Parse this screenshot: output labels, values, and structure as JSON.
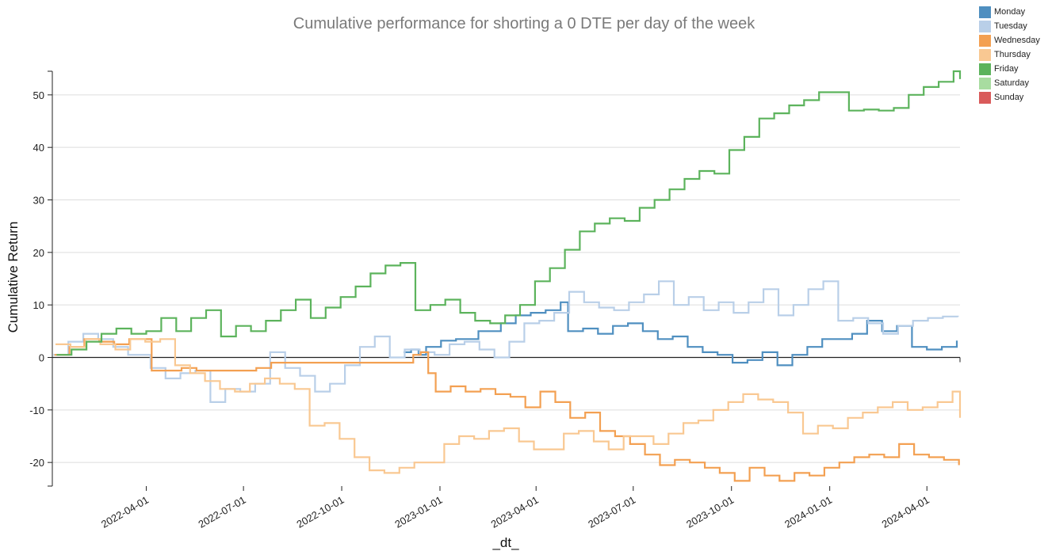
{
  "chart_data": {
    "type": "line",
    "title": "Cumulative performance for shorting a 0 DTE per day of the week",
    "xlabel": "_dt_",
    "ylabel": "Cumulative Return",
    "xlim": [
      "2022-01-03",
      "2024-05-02"
    ],
    "ylim": [
      -24.5,
      54.5
    ],
    "grid": true,
    "legend_position": "top-right",
    "x_tick_labels": [
      "2022-04-01",
      "2022-07-01",
      "2022-10-01",
      "2023-01-01",
      "2023-04-01",
      "2023-07-01",
      "2023-10-01",
      "2024-01-01",
      "2024-04-01"
    ],
    "y_tick_labels": [
      "-20",
      "-10",
      "0",
      "10",
      "20",
      "30",
      "40",
      "50"
    ],
    "y_ticks": [
      -20,
      -10,
      0,
      10,
      20,
      30,
      40,
      50
    ],
    "series": [
      {
        "name": "Monday",
        "color": "#4f8fc0",
        "x": [
          "2022-11-28",
          "2022-12-05",
          "2022-12-12",
          "2022-12-19",
          "2023-01-02",
          "2023-01-16",
          "2023-02-06",
          "2023-02-27",
          "2023-03-13",
          "2023-03-27",
          "2023-04-10",
          "2023-04-24",
          "2023-05-01",
          "2023-05-15",
          "2023-05-29",
          "2023-06-12",
          "2023-06-26",
          "2023-07-10",
          "2023-07-24",
          "2023-08-07",
          "2023-08-21",
          "2023-09-04",
          "2023-09-18",
          "2023-10-02",
          "2023-10-16",
          "2023-10-30",
          "2023-11-13",
          "2023-11-27",
          "2023-12-11",
          "2023-12-25",
          "2024-01-08",
          "2024-01-22",
          "2024-02-05",
          "2024-02-19",
          "2024-03-04",
          "2024-03-18",
          "2024-04-01",
          "2024-04-15",
          "2024-04-29"
        ],
        "y": [
          1.0,
          1.5,
          0.5,
          2.0,
          3.2,
          3.5,
          5.0,
          6.5,
          8.0,
          8.5,
          9.0,
          10.5,
          5.0,
          5.5,
          4.5,
          6.0,
          6.5,
          5.0,
          3.5,
          4.0,
          2.0,
          1.0,
          0.5,
          -1.0,
          -0.5,
          1.0,
          -1.5,
          0.5,
          2.0,
          3.5,
          3.5,
          4.5,
          7.0,
          5.0,
          6.0,
          2.0,
          1.5,
          2.0,
          3.2
        ]
      },
      {
        "name": "Tuesday",
        "color": "#b9cfe8",
        "x": [
          "2022-01-04",
          "2022-01-18",
          "2022-02-01",
          "2022-02-15",
          "2022-03-01",
          "2022-03-15",
          "2022-04-05",
          "2022-04-19",
          "2022-05-03",
          "2022-05-17",
          "2022-05-31",
          "2022-06-14",
          "2022-06-28",
          "2022-07-12",
          "2022-07-26",
          "2022-08-09",
          "2022-08-23",
          "2022-09-06",
          "2022-09-20",
          "2022-10-04",
          "2022-10-18",
          "2022-11-01",
          "2022-11-15",
          "2022-11-29",
          "2022-12-13",
          "2022-12-27",
          "2023-01-10",
          "2023-01-24",
          "2023-02-07",
          "2023-02-21",
          "2023-03-07",
          "2023-03-21",
          "2023-04-04",
          "2023-04-18",
          "2023-05-02",
          "2023-05-16",
          "2023-05-30",
          "2023-06-13",
          "2023-06-27",
          "2023-07-11",
          "2023-07-25",
          "2023-08-08",
          "2023-08-22",
          "2023-09-05",
          "2023-09-19",
          "2023-10-03",
          "2023-10-17",
          "2023-10-31",
          "2023-11-14",
          "2023-11-28",
          "2023-12-12",
          "2023-12-26",
          "2024-01-09",
          "2024-01-23",
          "2024-02-06",
          "2024-02-20",
          "2024-03-05",
          "2024-03-19",
          "2024-04-02",
          "2024-04-16",
          "2024-04-30"
        ],
        "y": [
          0.5,
          3.0,
          4.5,
          3.5,
          2.0,
          0.5,
          -2.0,
          -4.0,
          -3.0,
          -2.5,
          -8.5,
          -6.0,
          -6.5,
          -5.0,
          1.0,
          -2.0,
          -3.5,
          -6.5,
          -5.0,
          -1.5,
          2.0,
          4.0,
          0.0,
          1.5,
          1.0,
          0.5,
          2.5,
          3.0,
          1.5,
          0.0,
          3.0,
          6.5,
          7.0,
          8.5,
          12.5,
          10.5,
          9.5,
          9.0,
          10.5,
          12.0,
          14.5,
          10.0,
          11.5,
          9.0,
          10.5,
          8.5,
          10.5,
          13.0,
          8.0,
          10.0,
          13.0,
          14.5,
          7.0,
          7.5,
          6.5,
          4.5,
          6.0,
          7.0,
          7.5,
          7.8,
          7.7
        ]
      },
      {
        "name": "Wednesday",
        "color": "#f3a052",
        "x": [
          "2022-01-05",
          "2022-01-19",
          "2022-02-02",
          "2022-02-16",
          "2022-03-02",
          "2022-03-16",
          "2022-04-06",
          "2022-04-20",
          "2022-05-04",
          "2022-05-18",
          "2022-06-01",
          "2022-06-15",
          "2022-06-29",
          "2022-07-13",
          "2022-07-27",
          "2022-08-10",
          "2022-08-24",
          "2022-09-07",
          "2022-09-21",
          "2022-10-05",
          "2022-10-19",
          "2022-11-02",
          "2022-11-16",
          "2022-11-30",
          "2022-12-07",
          "2022-12-14",
          "2022-12-21",
          "2022-12-28",
          "2023-01-11",
          "2023-01-25",
          "2023-02-08",
          "2023-02-22",
          "2023-03-08",
          "2023-03-22",
          "2023-04-05",
          "2023-04-19",
          "2023-05-03",
          "2023-05-17",
          "2023-05-31",
          "2023-06-14",
          "2023-06-28",
          "2023-07-12",
          "2023-07-26",
          "2023-08-09",
          "2023-08-23",
          "2023-09-06",
          "2023-09-20",
          "2023-10-04",
          "2023-10-18",
          "2023-11-01",
          "2023-11-15",
          "2023-11-29",
          "2023-12-13",
          "2023-12-27",
          "2024-01-10",
          "2024-01-24",
          "2024-02-07",
          "2024-02-21",
          "2024-03-06",
          "2024-03-20",
          "2024-04-03",
          "2024-04-17",
          "2024-05-01"
        ],
        "y": [
          0.5,
          2.0,
          3.5,
          3.0,
          2.5,
          3.5,
          -2.5,
          -2.5,
          -2.0,
          -2.5,
          -2.5,
          -2.5,
          -2.5,
          -2.0,
          -1.0,
          -1.0,
          -1.0,
          -1.0,
          -1.0,
          -1.0,
          -1.0,
          -1.0,
          -1.0,
          -1.0,
          0.5,
          1.0,
          -3.0,
          -6.5,
          -5.5,
          -6.5,
          -6.0,
          -7.0,
          -7.5,
          -9.5,
          -6.5,
          -8.5,
          -11.5,
          -10.5,
          -14.0,
          -15.0,
          -16.5,
          -18.5,
          -20.5,
          -19.5,
          -20.0,
          -21.0,
          -22.0,
          -23.5,
          -21.0,
          -22.5,
          -23.5,
          -22.0,
          -22.5,
          -21.0,
          -20.0,
          -19.0,
          -18.5,
          -19.0,
          -16.5,
          -18.5,
          -19.0,
          -19.5,
          -20.5
        ]
      },
      {
        "name": "Thursday",
        "color": "#f9c892",
        "x": [
          "2022-01-06",
          "2022-01-20",
          "2022-02-03",
          "2022-02-17",
          "2022-03-03",
          "2022-03-17",
          "2022-03-31",
          "2022-04-14",
          "2022-04-28",
          "2022-05-12",
          "2022-05-26",
          "2022-06-09",
          "2022-06-23",
          "2022-07-07",
          "2022-07-21",
          "2022-08-04",
          "2022-08-18",
          "2022-09-01",
          "2022-09-15",
          "2022-09-29",
          "2022-10-13",
          "2022-10-27",
          "2022-11-10",
          "2022-11-24",
          "2022-12-08",
          "2022-12-22",
          "2023-01-05",
          "2023-01-19",
          "2023-02-02",
          "2023-02-16",
          "2023-03-02",
          "2023-03-16",
          "2023-03-30",
          "2023-04-13",
          "2023-04-27",
          "2023-05-11",
          "2023-05-25",
          "2023-06-08",
          "2023-06-22",
          "2023-07-06",
          "2023-07-20",
          "2023-08-03",
          "2023-08-17",
          "2023-08-31",
          "2023-09-14",
          "2023-09-28",
          "2023-10-12",
          "2023-10-26",
          "2023-11-09",
          "2023-11-23",
          "2023-12-07",
          "2023-12-21",
          "2024-01-04",
          "2024-01-18",
          "2024-02-01",
          "2024-02-15",
          "2024-02-29",
          "2024-03-14",
          "2024-03-28",
          "2024-04-11",
          "2024-04-25",
          "2024-05-02"
        ],
        "y": [
          2.5,
          2.0,
          3.5,
          2.5,
          1.5,
          3.5,
          3.0,
          3.5,
          -1.5,
          -3.0,
          -4.5,
          -6.0,
          -6.5,
          -5.0,
          -4.0,
          -5.0,
          -6.0,
          -13.0,
          -12.5,
          -15.5,
          -19.0,
          -21.5,
          -22.0,
          -21.0,
          -20.0,
          -20.0,
          -16.5,
          -15.0,
          -15.5,
          -14.0,
          -13.5,
          -16.0,
          -17.5,
          -17.5,
          -14.5,
          -14.0,
          -16.0,
          -17.5,
          -15.0,
          -15.0,
          -16.5,
          -14.5,
          -12.5,
          -12.0,
          -10.0,
          -8.5,
          -7.0,
          -8.0,
          -8.5,
          -10.5,
          -14.5,
          -13.0,
          -13.5,
          -11.5,
          -10.5,
          -9.5,
          -8.5,
          -10.0,
          -9.5,
          -8.5,
          -6.5,
          -11.5
        ]
      },
      {
        "name": "Friday",
        "color": "#5cb35c",
        "x": [
          "2022-01-07",
          "2022-01-21",
          "2022-02-04",
          "2022-02-18",
          "2022-03-04",
          "2022-03-18",
          "2022-04-01",
          "2022-04-15",
          "2022-04-29",
          "2022-05-13",
          "2022-05-27",
          "2022-06-10",
          "2022-06-24",
          "2022-07-08",
          "2022-07-22",
          "2022-08-05",
          "2022-08-19",
          "2022-09-02",
          "2022-09-16",
          "2022-09-30",
          "2022-10-14",
          "2022-10-28",
          "2022-11-11",
          "2022-11-25",
          "2022-12-09",
          "2022-12-23",
          "2023-01-06",
          "2023-01-20",
          "2023-02-03",
          "2023-02-17",
          "2023-03-03",
          "2023-03-17",
          "2023-03-31",
          "2023-04-14",
          "2023-04-28",
          "2023-05-12",
          "2023-05-26",
          "2023-06-09",
          "2023-06-23",
          "2023-07-07",
          "2023-07-21",
          "2023-08-04",
          "2023-08-18",
          "2023-09-01",
          "2023-09-15",
          "2023-09-29",
          "2023-10-13",
          "2023-10-27",
          "2023-11-10",
          "2023-11-24",
          "2023-12-08",
          "2023-12-22",
          "2024-01-05",
          "2024-01-19",
          "2024-02-02",
          "2024-02-16",
          "2024-03-01",
          "2024-03-15",
          "2024-03-29",
          "2024-04-12",
          "2024-04-26",
          "2024-05-02"
        ],
        "y": [
          0.5,
          1.5,
          3.0,
          4.5,
          5.5,
          4.5,
          5.0,
          7.5,
          5.0,
          7.5,
          9.0,
          4.0,
          6.0,
          5.0,
          7.0,
          9.0,
          11.0,
          7.5,
          9.5,
          11.5,
          13.5,
          16.0,
          17.5,
          18.0,
          9.0,
          10.0,
          11.0,
          8.5,
          7.0,
          6.5,
          8.0,
          10.0,
          14.5,
          17.0,
          20.5,
          24.0,
          25.5,
          26.5,
          26.0,
          28.5,
          30.0,
          32.0,
          34.0,
          35.5,
          35.0,
          39.5,
          42.0,
          45.5,
          46.5,
          48.0,
          49.0,
          50.5,
          50.5,
          47.0,
          47.2,
          47.0,
          47.5,
          50.0,
          51.5,
          52.5,
          54.5,
          53.0
        ]
      },
      {
        "name": "Saturday",
        "color": "#a8dca0",
        "x": [],
        "y": []
      },
      {
        "name": "Sunday",
        "color": "#d95a5a",
        "x": [],
        "y": []
      }
    ]
  }
}
